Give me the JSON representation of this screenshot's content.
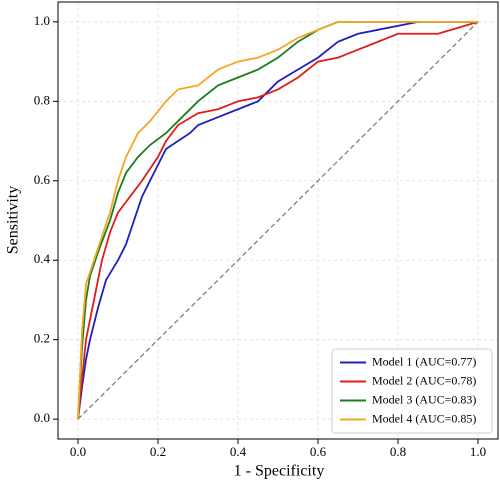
{
  "chart_data": {
    "type": "line",
    "x_label": "1 - Specificity",
    "y_label": "Sensitivity",
    "xlim": [
      -0.05,
      1.05
    ],
    "ylim": [
      -0.05,
      1.05
    ],
    "xticks": [
      {
        "value": 0,
        "label": "0.0"
      },
      {
        "value": 0.2,
        "label": "0.2"
      },
      {
        "value": 0.4,
        "label": "0.4"
      },
      {
        "value": 0.6,
        "label": "0.6"
      },
      {
        "value": 0.8,
        "label": "0.8"
      },
      {
        "value": 1,
        "label": "1.0"
      }
    ],
    "yticks": [
      {
        "value": 0,
        "label": "0.0"
      },
      {
        "value": 0.2,
        "label": "0.2"
      },
      {
        "value": 0.4,
        "label": "0.4"
      },
      {
        "value": 0.6,
        "label": "0.6"
      },
      {
        "value": 0.8,
        "label": "0.8"
      },
      {
        "value": 1,
        "label": "1.0"
      }
    ],
    "grid": true,
    "legend": "lower right",
    "reference_line": {
      "x": [
        0,
        1
      ],
      "values": [
        0,
        1
      ],
      "color": "#808080"
    },
    "series": [
      {
        "name": "Model 1 (AUC=0.77)",
        "color": "#1f1fbf",
        "x": [
          0,
          0.01,
          0.02,
          0.03,
          0.05,
          0.07,
          0.1,
          0.12,
          0.14,
          0.16,
          0.18,
          0.2,
          0.22,
          0.25,
          0.28,
          0.3,
          0.35,
          0.4,
          0.45,
          0.5,
          0.55,
          0.6,
          0.65,
          0.7,
          0.75,
          0.85,
          1
        ],
        "values": [
          0,
          0.08,
          0.15,
          0.2,
          0.28,
          0.35,
          0.4,
          0.44,
          0.5,
          0.56,
          0.6,
          0.64,
          0.68,
          0.7,
          0.72,
          0.74,
          0.76,
          0.78,
          0.8,
          0.85,
          0.88,
          0.91,
          0.95,
          0.97,
          0.98,
          1,
          1
        ]
      },
      {
        "name": "Model 2 (AUC=0.78)",
        "color": "#e01c1c",
        "x": [
          0,
          0.01,
          0.02,
          0.04,
          0.06,
          0.08,
          0.1,
          0.13,
          0.16,
          0.2,
          0.22,
          0.25,
          0.3,
          0.35,
          0.4,
          0.45,
          0.5,
          0.55,
          0.6,
          0.65,
          0.7,
          0.75,
          0.8,
          0.9,
          1
        ],
        "values": [
          0,
          0.1,
          0.2,
          0.3,
          0.4,
          0.47,
          0.52,
          0.56,
          0.6,
          0.66,
          0.7,
          0.74,
          0.77,
          0.78,
          0.8,
          0.81,
          0.83,
          0.86,
          0.9,
          0.91,
          0.93,
          0.95,
          0.97,
          0.97,
          1
        ]
      },
      {
        "name": "Model 3 (AUC=0.83)",
        "color": "#1a7f1a",
        "x": [
          0,
          0.01,
          0.02,
          0.03,
          0.05,
          0.08,
          0.1,
          0.12,
          0.15,
          0.18,
          0.22,
          0.25,
          0.3,
          0.35,
          0.4,
          0.45,
          0.5,
          0.55,
          0.6,
          0.65,
          1
        ],
        "values": [
          0,
          0.18,
          0.3,
          0.36,
          0.42,
          0.5,
          0.57,
          0.62,
          0.66,
          0.69,
          0.72,
          0.75,
          0.8,
          0.84,
          0.86,
          0.88,
          0.91,
          0.95,
          0.98,
          1,
          1
        ]
      },
      {
        "name": "Model 4 (AUC=0.85)",
        "color": "#f5a623",
        "x": [
          0,
          0.01,
          0.02,
          0.04,
          0.06,
          0.08,
          0.1,
          0.12,
          0.15,
          0.18,
          0.22,
          0.25,
          0.3,
          0.35,
          0.4,
          0.45,
          0.5,
          0.55,
          0.6,
          0.65,
          1
        ],
        "values": [
          0,
          0.22,
          0.34,
          0.4,
          0.46,
          0.52,
          0.6,
          0.66,
          0.72,
          0.75,
          0.8,
          0.83,
          0.84,
          0.88,
          0.9,
          0.91,
          0.93,
          0.96,
          0.98,
          1,
          1
        ]
      }
    ]
  }
}
